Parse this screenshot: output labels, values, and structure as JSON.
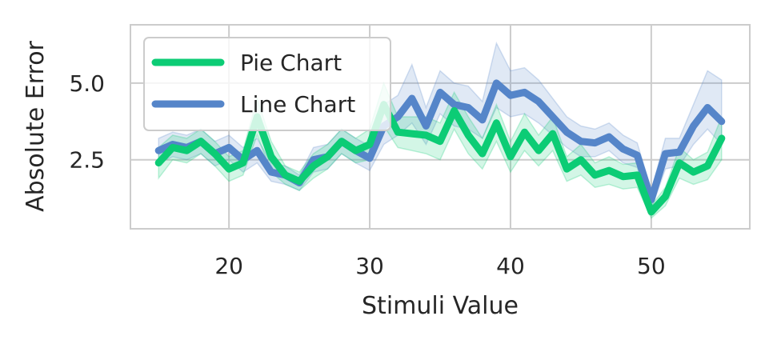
{
  "chart_data": {
    "type": "line",
    "xlabel": "Stimuli Value",
    "ylabel": "Absolute Error",
    "xlim": [
      13,
      57
    ],
    "ylim": [
      0.25,
      6.9
    ],
    "xticks": [
      20,
      30,
      40,
      50
    ],
    "yticks": [
      2.5,
      5.0
    ],
    "xtick_labels": [
      "20",
      "30",
      "40",
      "50"
    ],
    "ytick_labels": [
      "2.5",
      "5.0"
    ],
    "grid": true,
    "legend_position": "top-left",
    "x": [
      15,
      16,
      17,
      18,
      19,
      20,
      21,
      22,
      23,
      24,
      25,
      26,
      27,
      28,
      29,
      30,
      31,
      32,
      33,
      34,
      35,
      36,
      37,
      38,
      39,
      40,
      41,
      42,
      43,
      44,
      45,
      46,
      47,
      48,
      49,
      50,
      51,
      52,
      53,
      54,
      55
    ],
    "series": [
      {
        "name": "Pie Chart",
        "color": "#0ccc75",
        "values": [
          2.4,
          2.9,
          2.8,
          3.1,
          2.7,
          2.2,
          2.4,
          3.9,
          2.6,
          2.0,
          1.8,
          2.3,
          2.6,
          3.1,
          2.8,
          3.0,
          4.3,
          3.4,
          3.35,
          3.3,
          3.1,
          4.1,
          3.3,
          2.7,
          3.7,
          2.6,
          3.4,
          2.8,
          3.35,
          2.2,
          2.5,
          2.0,
          2.15,
          1.95,
          2.0,
          0.8,
          1.3,
          2.4,
          2.1,
          2.3,
          3.2
        ],
        "band_low": [
          1.9,
          2.5,
          2.4,
          2.7,
          2.3,
          1.8,
          2.0,
          3.3,
          2.1,
          1.7,
          1.5,
          1.9,
          2.2,
          2.7,
          2.4,
          2.5,
          3.6,
          2.9,
          2.8,
          2.7,
          2.5,
          3.5,
          2.7,
          2.2,
          3.1,
          2.1,
          2.8,
          2.3,
          2.8,
          1.8,
          2.0,
          1.6,
          1.7,
          1.55,
          1.6,
          0.6,
          1.0,
          1.9,
          1.7,
          1.85,
          2.5
        ],
        "band_high": [
          2.9,
          3.3,
          3.2,
          3.5,
          3.1,
          2.6,
          2.8,
          4.5,
          3.1,
          2.3,
          2.1,
          2.7,
          3.0,
          3.5,
          3.2,
          3.5,
          5.0,
          3.9,
          3.9,
          3.9,
          3.7,
          4.7,
          3.9,
          3.2,
          4.3,
          3.1,
          4.0,
          3.3,
          3.9,
          2.6,
          3.0,
          2.4,
          2.6,
          2.35,
          2.4,
          1.0,
          1.6,
          2.9,
          2.5,
          2.75,
          3.9
        ]
      },
      {
        "name": "Line Chart",
        "color": "#5585c9",
        "values": [
          2.8,
          3.0,
          2.9,
          3.1,
          2.7,
          2.9,
          2.5,
          2.8,
          2.1,
          2.0,
          1.75,
          2.5,
          2.6,
          3.1,
          2.8,
          2.55,
          3.6,
          3.9,
          4.5,
          3.6,
          4.7,
          4.3,
          4.2,
          3.8,
          5.0,
          4.6,
          4.7,
          4.4,
          3.9,
          3.4,
          3.1,
          3.05,
          3.25,
          2.85,
          2.65,
          1.2,
          2.7,
          2.75,
          3.6,
          4.2,
          3.75
        ],
        "band_low": [
          2.4,
          2.6,
          2.5,
          2.7,
          2.3,
          2.5,
          2.1,
          2.4,
          1.8,
          1.7,
          1.5,
          2.1,
          2.2,
          2.7,
          2.4,
          2.15,
          3.0,
          3.3,
          3.7,
          3.0,
          4.0,
          3.6,
          3.5,
          3.2,
          4.2,
          3.9,
          4.0,
          3.7,
          3.3,
          2.9,
          2.6,
          2.6,
          2.8,
          2.4,
          2.25,
          0.9,
          2.2,
          2.3,
          3.0,
          3.5,
          3.0
        ],
        "band_high": [
          3.2,
          3.4,
          3.3,
          3.5,
          3.1,
          3.3,
          2.9,
          3.2,
          2.4,
          2.3,
          2.0,
          2.9,
          3.0,
          3.5,
          3.2,
          2.95,
          4.3,
          4.6,
          5.6,
          4.2,
          5.4,
          5.0,
          4.9,
          4.4,
          6.3,
          5.4,
          5.5,
          5.1,
          4.5,
          3.9,
          3.6,
          3.5,
          3.7,
          3.3,
          3.05,
          1.5,
          3.2,
          3.2,
          4.3,
          5.4,
          5.1
        ]
      }
    ]
  }
}
